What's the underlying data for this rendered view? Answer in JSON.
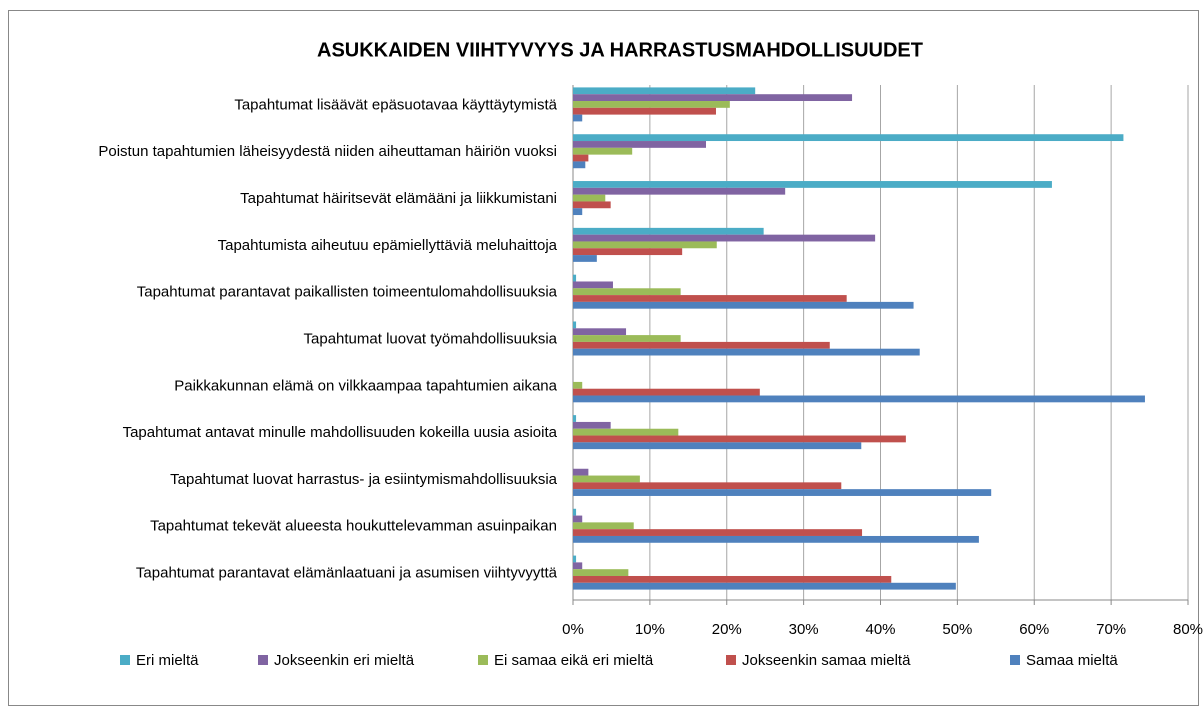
{
  "chart_data": {
    "type": "hbar",
    "title": "ASUKKAIDEN VIIHTYVYYS JA HARRASTUSMAHDOLLISUUDET",
    "categories": [
      "Tapahtumat lisäävät epäsuotavaa käyttäytymistä",
      "Poistun tapahtumien läheisyydestä niiden aiheuttaman häiriön vuoksi",
      "Tapahtumat häiritsevät elämääni ja liikkumistani",
      "Tapahtumista aiheutuu epämiellyttäviä meluhaittoja",
      "Tapahtumat parantavat paikallisten toimeentulomahdollisuuksia",
      "Tapahtumat luovat työmahdollisuuksia",
      "Paikkakunnan elämä on vilkkaampaa tapahtumien aikana",
      "Tapahtumat antavat minulle mahdollisuuden kokeilla uusia asioita",
      "Tapahtumat luovat harrastus- ja esiintymismahdollisuuksia",
      "Tapahtumat tekevät alueesta houkuttelevamman asuinpaikan",
      "Tapahtumat parantavat elämänlaatuani ja asumisen viihtyvyyttä"
    ],
    "series": [
      {
        "name": "Eri mieltä",
        "color": "#4bacc6",
        "values": [
          23.7,
          71.6,
          62.3,
          24.8,
          0.4,
          0.4,
          0,
          0.4,
          0,
          0.4,
          0.4
        ]
      },
      {
        "name": "Jokseenkin eri mieltä",
        "color": "#8064a2",
        "values": [
          36.3,
          17.3,
          27.6,
          39.3,
          5.2,
          6.9,
          0,
          4.9,
          2.0,
          1.2,
          1.2
        ]
      },
      {
        "name": "Ei samaa eikä eri mieltä",
        "color": "#9bbb59",
        "values": [
          20.4,
          7.7,
          4.2,
          18.7,
          14.0,
          14.0,
          1.2,
          13.7,
          8.7,
          7.9,
          7.2
        ]
      },
      {
        "name": "Jokseenkin samaa mieltä",
        "color": "#c0504d",
        "values": [
          18.6,
          2.0,
          4.9,
          14.2,
          35.6,
          33.4,
          24.3,
          43.3,
          34.9,
          37.6,
          41.4
        ]
      },
      {
        "name": "Samaa mieltä",
        "color": "#4f81bd",
        "values": [
          1.2,
          1.6,
          1.2,
          3.1,
          44.3,
          45.1,
          74.4,
          37.5,
          54.4,
          52.8,
          49.8
        ]
      }
    ],
    "xlim": [
      0,
      80
    ],
    "xticks": [
      {
        "value": 0,
        "label": "0%"
      },
      {
        "value": 10,
        "label": "10%"
      },
      {
        "value": 20,
        "label": "20%"
      },
      {
        "value": 30,
        "label": "30%"
      },
      {
        "value": 40,
        "label": "40%"
      },
      {
        "value": 50,
        "label": "50%"
      },
      {
        "value": 60,
        "label": "60%"
      },
      {
        "value": 70,
        "label": "70%"
      },
      {
        "value": 80,
        "label": "80%"
      }
    ],
    "grid": true,
    "legend": "bottom"
  }
}
